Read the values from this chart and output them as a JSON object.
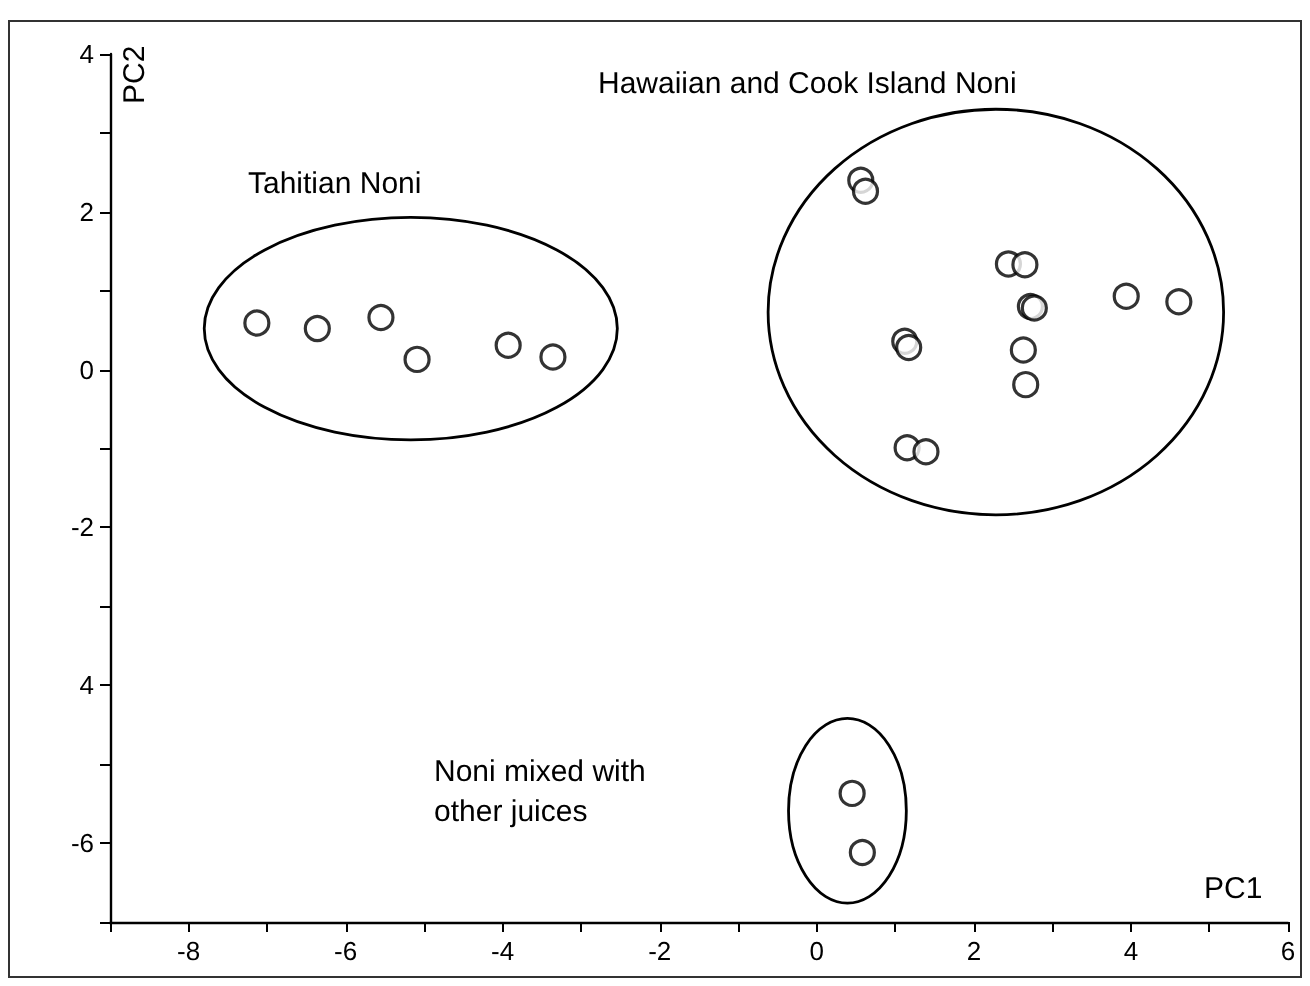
{
  "chart_data": {
    "type": "scatter",
    "xlabel": "PC1",
    "ylabel": "PC2",
    "annotations": [
      "Tahitian Noni",
      "Hawaiian and Cook Island Noni",
      "Noni mixed with\nother juices"
    ],
    "xlim": [
      -9,
      6
    ],
    "ylim": [
      -7,
      4
    ],
    "xticks": [
      {
        "value": -9,
        "label": null
      },
      -8,
      {
        "value": -7,
        "label": null
      },
      -6,
      {
        "value": -5,
        "label": null
      },
      -4,
      {
        "value": -3,
        "label": null
      },
      -2,
      {
        "value": -1,
        "label": null
      },
      0,
      {
        "value": 1,
        "label": null
      },
      2,
      {
        "value": 3,
        "label": null
      },
      4,
      {
        "value": 5,
        "label": null
      },
      6
    ],
    "yticks": [
      {
        "value": -7,
        "label": null
      },
      -6,
      {
        "value": -5,
        "label": null
      },
      {
        "value": -4,
        "label": "4"
      },
      {
        "value": -3,
        "label": null
      },
      -2,
      {
        "value": -1,
        "label": null
      },
      0,
      {
        "value": 1,
        "label": null
      },
      2,
      {
        "value": 3,
        "label": null
      },
      4
    ],
    "grid": false,
    "marker": "circle",
    "series": [
      {
        "color": "#000000",
        "x": [
          -7.13,
          -6.36,
          -5.55,
          -5.09,
          -3.93,
          -3.36
        ],
        "values": [
          0.59,
          0.52,
          0.66,
          0.13,
          0.31,
          0.16
        ]
      },
      {
        "color": "#000000",
        "x": [
          0.56,
          0.62,
          2.44,
          2.65,
          2.72,
          2.77,
          3.94,
          4.61,
          1.12,
          1.17,
          2.63,
          2.66,
          1.15,
          1.39
        ],
        "values": [
          2.4,
          2.26,
          1.34,
          1.33,
          0.8,
          0.78,
          0.93,
          0.86,
          0.36,
          0.28,
          0.25,
          -0.19,
          -0.99,
          -1.04
        ]
      },
      {
        "color": "#000000",
        "x": [
          0.45,
          0.58
        ],
        "values": [
          -5.37,
          -6.12
        ]
      }
    ]
  }
}
